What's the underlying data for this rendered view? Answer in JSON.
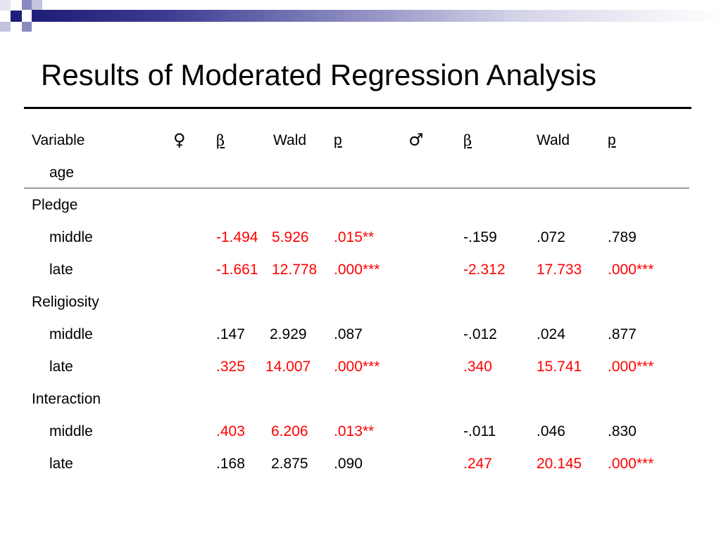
{
  "slide": {
    "title": "Results of Moderated Regression Analysis",
    "colors": {
      "text": "#000000",
      "significant": "#ff0000",
      "accent_dark": "#1f1f7a",
      "accent_light": "#8a8ac0"
    }
  },
  "table": {
    "header": {
      "variable": "Variable",
      "female_symbol": "♀",
      "female_beta": "β",
      "female_wald": "Wald",
      "female_p": "p",
      "male_symbol": "♂",
      "male_beta": "β",
      "male_wald": "Wald",
      "male_p": "p",
      "subvariable": "age"
    },
    "groups": [
      {
        "label": "Pledge",
        "rows": [
          {
            "label": "middle",
            "female": {
              "beta": "-1.494",
              "wald": "5.926",
              "p": ".015**",
              "significant": true
            },
            "male": {
              "beta": "-.159",
              "wald": ".072",
              "p": ".789",
              "significant": false
            }
          },
          {
            "label": "late",
            "female": {
              "beta": "-1.661",
              "wald": "12.778",
              "p": ".000***",
              "significant": true
            },
            "male": {
              "beta": "-2.312",
              "wald": "17.733",
              "p": ".000***",
              "significant": true
            }
          }
        ]
      },
      {
        "label": "Religiosity",
        "rows": [
          {
            "label": "middle",
            "female": {
              "beta": ".147",
              "wald": "2.929",
              "p": ".087",
              "significant": false
            },
            "male": {
              "beta": "-.012",
              "wald": ".024",
              "p": ".877",
              "significant": false
            }
          },
          {
            "label": "late",
            "female": {
              "beta": ".325",
              "wald": "14.007",
              "p": ".000***",
              "significant": true
            },
            "male": {
              "beta": ".340",
              "wald": "15.741",
              "p": ".000***",
              "significant": true
            }
          }
        ]
      },
      {
        "label": "Interaction",
        "rows": [
          {
            "label": "middle",
            "female": {
              "beta": ".403",
              "wald": "6.206",
              "p": ".013**",
              "significant": true
            },
            "male": {
              "beta": "-.011",
              "wald": ".046",
              "p": ".830",
              "significant": false
            }
          },
          {
            "label": "late",
            "female": {
              "beta": ".168",
              "wald": "2.875",
              "p": ".090",
              "significant": false
            },
            "male": {
              "beta": ".247",
              "wald": "20.145",
              "p": ".000***",
              "significant": true
            }
          }
        ]
      }
    ]
  }
}
